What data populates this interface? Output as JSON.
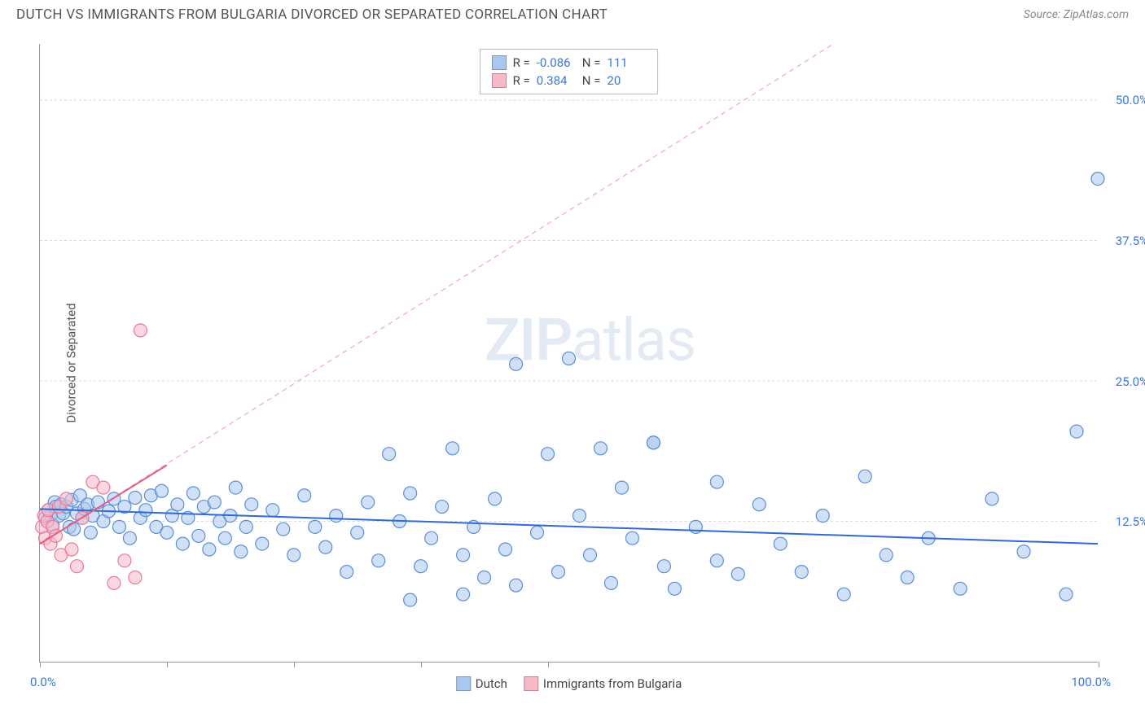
{
  "header": {
    "title": "DUTCH VS IMMIGRANTS FROM BULGARIA DIVORCED OR SEPARATED CORRELATION CHART",
    "source": "Source: ZipAtlas.com"
  },
  "watermark": {
    "zip": "ZIP",
    "atlas": "atlas"
  },
  "chart": {
    "type": "scatter",
    "background_color": "#ffffff",
    "grid_color": "#d8d8d8",
    "axis_color": "#999999",
    "xlim": [
      0,
      100
    ],
    "ylim": [
      0,
      55
    ],
    "x_ticks": [
      0,
      12,
      24,
      36,
      48,
      100
    ],
    "x_tick_labels": {
      "0": "0.0%",
      "100": "100.0%"
    },
    "y_ticks": [
      12.5,
      25.0,
      37.5,
      50.0
    ],
    "y_tick_labels": [
      "12.5%",
      "25.0%",
      "37.5%",
      "50.0%"
    ],
    "ylabel": "Divorced or Separated",
    "marker_radius": 8,
    "marker_stroke_width": 1.2,
    "trend_line_width": 2,
    "dash_line_dash": "6 5",
    "label_fontsize": 15,
    "label_color": "#3b78d8",
    "series": [
      {
        "name": "Dutch",
        "fill_color": "#a9c7ef",
        "stroke_color": "#5b8fd6",
        "fill_opacity": 0.55,
        "trend": {
          "x1": 0,
          "y1": 13.6,
          "x2": 100,
          "y2": 10.5,
          "color": "#2f6bd0"
        },
        "points": [
          [
            0.5,
            12.8
          ],
          [
            0.8,
            13.5
          ],
          [
            1.0,
            13.0
          ],
          [
            1.2,
            12.2
          ],
          [
            1.4,
            14.2
          ],
          [
            1.5,
            13.8
          ],
          [
            1.8,
            13.0
          ],
          [
            2.0,
            14.0
          ],
          [
            2.2,
            13.2
          ],
          [
            2.5,
            13.8
          ],
          [
            2.8,
            12.0
          ],
          [
            3.0,
            14.4
          ],
          [
            3.2,
            11.8
          ],
          [
            3.5,
            13.2
          ],
          [
            3.8,
            14.8
          ],
          [
            4.0,
            12.8
          ],
          [
            4.2,
            13.6
          ],
          [
            4.5,
            14.0
          ],
          [
            4.8,
            11.5
          ],
          [
            5.0,
            13.0
          ],
          [
            5.5,
            14.2
          ],
          [
            6.0,
            12.5
          ],
          [
            6.5,
            13.4
          ],
          [
            7.0,
            14.5
          ],
          [
            7.5,
            12.0
          ],
          [
            8.0,
            13.8
          ],
          [
            8.5,
            11.0
          ],
          [
            9.0,
            14.6
          ],
          [
            9.5,
            12.8
          ],
          [
            10.0,
            13.5
          ],
          [
            10.5,
            14.8
          ],
          [
            11.0,
            12.0
          ],
          [
            11.5,
            15.2
          ],
          [
            12.0,
            11.5
          ],
          [
            12.5,
            13.0
          ],
          [
            13.0,
            14.0
          ],
          [
            13.5,
            10.5
          ],
          [
            14.0,
            12.8
          ],
          [
            14.5,
            15.0
          ],
          [
            15.0,
            11.2
          ],
          [
            15.5,
            13.8
          ],
          [
            16.0,
            10.0
          ],
          [
            16.5,
            14.2
          ],
          [
            17.0,
            12.5
          ],
          [
            17.5,
            11.0
          ],
          [
            18.0,
            13.0
          ],
          [
            18.5,
            15.5
          ],
          [
            19.0,
            9.8
          ],
          [
            19.5,
            12.0
          ],
          [
            20.0,
            14.0
          ],
          [
            21.0,
            10.5
          ],
          [
            22.0,
            13.5
          ],
          [
            23.0,
            11.8
          ],
          [
            24.0,
            9.5
          ],
          [
            25.0,
            14.8
          ],
          [
            26.0,
            12.0
          ],
          [
            27.0,
            10.2
          ],
          [
            28.0,
            13.0
          ],
          [
            29.0,
            8.0
          ],
          [
            30.0,
            11.5
          ],
          [
            31.0,
            14.2
          ],
          [
            32.0,
            9.0
          ],
          [
            33.0,
            18.5
          ],
          [
            34.0,
            12.5
          ],
          [
            35.0,
            15.0
          ],
          [
            36.0,
            8.5
          ],
          [
            37.0,
            11.0
          ],
          [
            38.0,
            13.8
          ],
          [
            39.0,
            19.0
          ],
          [
            40.0,
            9.5
          ],
          [
            41.0,
            12.0
          ],
          [
            42.0,
            7.5
          ],
          [
            43.0,
            14.5
          ],
          [
            44.0,
            10.0
          ],
          [
            45.0,
            6.8
          ],
          [
            47.0,
            11.5
          ],
          [
            48.0,
            18.5
          ],
          [
            49.0,
            8.0
          ],
          [
            50.0,
            27.0
          ],
          [
            51.0,
            13.0
          ],
          [
            52.0,
            9.5
          ],
          [
            54.0,
            7.0
          ],
          [
            55.0,
            15.5
          ],
          [
            56.0,
            11.0
          ],
          [
            58.0,
            19.5
          ],
          [
            59.0,
            8.5
          ],
          [
            60.0,
            6.5
          ],
          [
            62.0,
            12.0
          ],
          [
            64.0,
            9.0
          ],
          [
            66.0,
            7.8
          ],
          [
            68.0,
            14.0
          ],
          [
            70.0,
            10.5
          ],
          [
            72.0,
            8.0
          ],
          [
            74.0,
            13.0
          ],
          [
            76.0,
            6.0
          ],
          [
            78.0,
            16.5
          ],
          [
            80.0,
            9.5
          ],
          [
            82.0,
            7.5
          ],
          [
            84.0,
            11.0
          ],
          [
            87.0,
            6.5
          ],
          [
            90.0,
            14.5
          ],
          [
            93.0,
            9.8
          ],
          [
            97.0,
            6.0
          ],
          [
            98.0,
            20.5
          ],
          [
            100.0,
            43.0
          ],
          [
            45.0,
            26.5
          ],
          [
            53.0,
            19.0
          ],
          [
            58.0,
            19.5
          ],
          [
            35.0,
            5.5
          ],
          [
            40.0,
            6.0
          ],
          [
            64.0,
            16.0
          ]
        ]
      },
      {
        "name": "Immigrants from Bulgaria",
        "fill_color": "#f7b8c8",
        "stroke_color": "#e87b9a",
        "fill_opacity": 0.55,
        "trend": {
          "x1": 0,
          "y1": 10.5,
          "x2": 12,
          "y2": 17.5,
          "color": "#e35d85"
        },
        "dash_trend": {
          "x1": 0,
          "y1": 10.5,
          "x2": 75,
          "y2": 55,
          "color": "#f0a8ba"
        },
        "points": [
          [
            0.2,
            12.0
          ],
          [
            0.4,
            13.0
          ],
          [
            0.5,
            11.0
          ],
          [
            0.7,
            12.5
          ],
          [
            0.8,
            13.5
          ],
          [
            1.0,
            10.5
          ],
          [
            1.2,
            12.0
          ],
          [
            1.5,
            11.2
          ],
          [
            1.8,
            13.8
          ],
          [
            2.0,
            9.5
          ],
          [
            2.5,
            14.5
          ],
          [
            3.0,
            10.0
          ],
          [
            3.5,
            8.5
          ],
          [
            4.0,
            12.8
          ],
          [
            5.0,
            16.0
          ],
          [
            6.0,
            15.5
          ],
          [
            7.0,
            7.0
          ],
          [
            8.0,
            9.0
          ],
          [
            9.0,
            7.5
          ],
          [
            9.5,
            29.5
          ]
        ]
      }
    ],
    "stats": [
      {
        "swatch": "#a9c7ef",
        "r_label": "R =",
        "r_value": "-0.086",
        "n_label": "N =",
        "n_value": "111"
      },
      {
        "swatch": "#f7b8c8",
        "r_label": "R =",
        "r_value": "0.384",
        "n_label": "N =",
        "n_value": "20"
      }
    ],
    "bottom_legend": [
      {
        "swatch": "#a9c7ef",
        "label": "Dutch"
      },
      {
        "swatch": "#f7b8c8",
        "label": "Immigrants from Bulgaria"
      }
    ]
  }
}
